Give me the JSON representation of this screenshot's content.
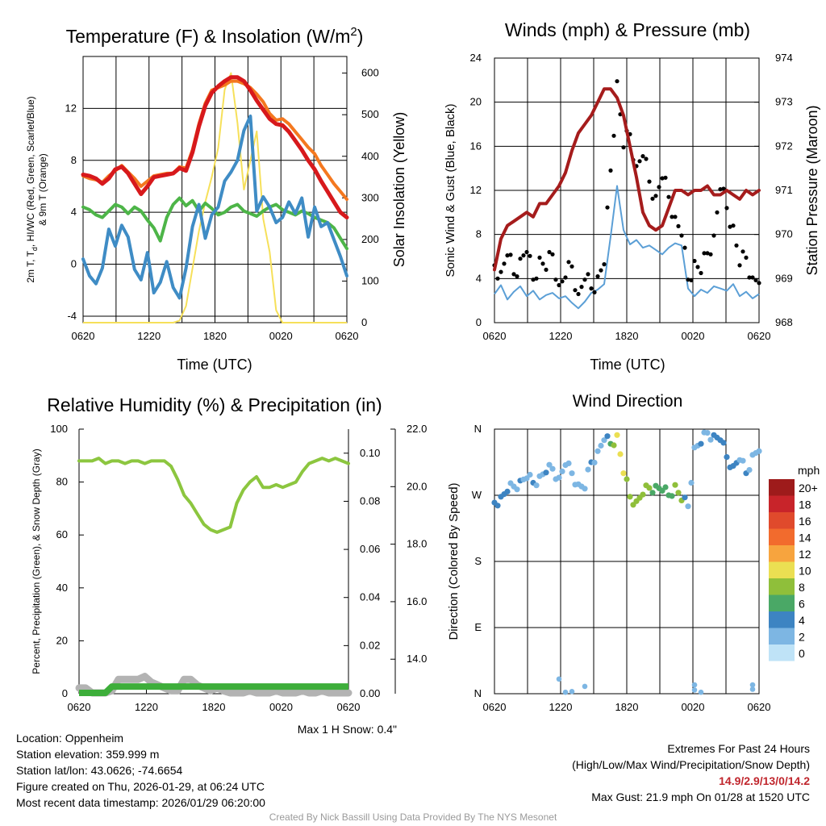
{
  "colors": {
    "red": "#d7191c",
    "scarlet": "#e03a2e",
    "orange": "#f4781f",
    "green": "#4db548",
    "blue": "#3f8cc5",
    "yellow": "#f6e05a",
    "maroon": "#a51c1c",
    "light_blue": "#5b9fd6",
    "gust": "#000000",
    "rh": "#8cc63f",
    "precip": "#3dae3a",
    "snow": "#b3b3b3"
  },
  "chart_data": [
    {
      "id": "temperature",
      "type": "line",
      "title": "Temperature (F) & Insolation (W/m",
      "title_sup": "2",
      "title_close": ")",
      "xlabel": "Time (UTC)",
      "ylabel_lines": [
        "2m T, T",
        "d",
        ", HI/WC (Red, Green, Scarlet/Blue)",
        "& 9m T (Orange)"
      ],
      "ylabel_right": "Solar Insolation (Yellow)",
      "x_ticks": [
        "0620",
        "1220",
        "1820",
        "0020",
        "0620"
      ],
      "ylim": [
        -4.5,
        16
      ],
      "y_ticks": [
        "-4",
        "0",
        "4",
        "8",
        "12"
      ],
      "ylim_right": [
        0,
        640
      ],
      "y_ticks_right": [
        "0",
        "100",
        "200",
        "300",
        "400",
        "500",
        "600"
      ],
      "series": [
        {
          "name": "9m T",
          "color": "orange",
          "width": 4,
          "values": [
            6.8,
            6.6,
            6.5,
            6.3,
            6.8,
            7.2,
            7.6,
            7.1,
            6.6,
            6.0,
            6.4,
            6.8,
            6.9,
            7.0,
            7.0,
            7.5,
            7.4,
            8.8,
            10.8,
            12.4,
            13.4,
            13.6,
            13.8,
            14.1,
            14.1,
            13.9,
            13.6,
            13.1,
            12.5,
            11.6,
            11.1,
            11.2,
            10.8,
            10.2,
            9.6,
            9.0,
            8.5,
            7.6,
            6.9,
            6.2,
            5.6,
            5.0
          ]
        },
        {
          "name": "2m T",
          "color": "red",
          "width": 5,
          "values": [
            6.9,
            6.8,
            6.6,
            6.2,
            6.6,
            7.3,
            7.5,
            7.0,
            6.2,
            5.4,
            6.0,
            6.7,
            6.8,
            6.9,
            7.0,
            7.4,
            7.2,
            8.6,
            10.6,
            12.2,
            13.2,
            13.7,
            14.1,
            14.4,
            14.4,
            14.1,
            13.4,
            12.6,
            11.9,
            11.2,
            10.8,
            10.7,
            10.2,
            9.5,
            8.8,
            8.0,
            7.3,
            6.4,
            5.6,
            4.8,
            4.0,
            3.6
          ]
        },
        {
          "name": "Td",
          "color": "green",
          "width": 4,
          "values": [
            4.4,
            4.2,
            3.8,
            3.6,
            4.1,
            4.6,
            4.4,
            3.9,
            4.4,
            4.1,
            3.4,
            2.8,
            1.8,
            3.6,
            4.6,
            5.1,
            4.5,
            4.9,
            4.1,
            4.7,
            4.3,
            3.8,
            4.0,
            4.4,
            4.6,
            4.1,
            3.9,
            3.7,
            4.1,
            4.4,
            4.6,
            4.2,
            4.0,
            3.8,
            4.1,
            3.9,
            3.6,
            3.4,
            3.2,
            2.8,
            2.0,
            1.2
          ]
        },
        {
          "name": "HI/WC",
          "color": "blue",
          "width": 4,
          "values": [
            0.4,
            -0.9,
            -1.5,
            -0.3,
            2.7,
            1.4,
            3.0,
            2.1,
            -0.4,
            -1.2,
            0.9,
            -2.2,
            -1.4,
            0.2,
            -1.8,
            -2.6,
            -0.3,
            2.9,
            4.6,
            2.0,
            3.8,
            4.4,
            6.4,
            7.1,
            8.0,
            10.3,
            11.4,
            4.1,
            5.2,
            4.4,
            3.2,
            3.6,
            4.8,
            3.9,
            5.1,
            2.1,
            4.4,
            2.9,
            3.2,
            1.9,
            0.6,
            -0.9
          ]
        }
      ],
      "right_series": [
        {
          "name": "Solar Insolation",
          "color": "yellow",
          "width": 2,
          "values": [
            0,
            0,
            0,
            0,
            0,
            0,
            0,
            0,
            0,
            0,
            0,
            0,
            0,
            0,
            0,
            5,
            40,
            130,
            220,
            290,
            350,
            420,
            560,
            600,
            480,
            320,
            390,
            460,
            250,
            170,
            30,
            0,
            0,
            0,
            0,
            0,
            0,
            0,
            0,
            0,
            0,
            0
          ]
        }
      ]
    },
    {
      "id": "winds",
      "type": "line",
      "title": "Winds (mph) & Pressure (mb)",
      "xlabel": "Time (UTC)",
      "ylabel": "Sonic Wind & Gust (Blue, Black)",
      "ylabel_right": "Station Pressure (Maroon)",
      "x_ticks": [
        "0620",
        "1220",
        "1820",
        "0020",
        "0620"
      ],
      "ylim": [
        0,
        24
      ],
      "y_ticks": [
        "0",
        "4",
        "8",
        "12",
        "16",
        "20",
        "24"
      ],
      "ylim_right": [
        968,
        974
      ],
      "y_ticks_right": [
        "968",
        "969",
        "970",
        "971",
        "972",
        "973",
        "974"
      ],
      "series": [
        {
          "name": "Sonic Wind",
          "color": "light_blue",
          "width": 2,
          "values": [
            2.6,
            3.4,
            2.1,
            2.8,
            3.3,
            2.4,
            2.9,
            2.1,
            2.5,
            2.7,
            2.2,
            2.4,
            1.8,
            1.3,
            1.9,
            2.7,
            3.0,
            3.5,
            7.8,
            12.4,
            8.4,
            7.1,
            7.5,
            6.8,
            7.0,
            6.6,
            6.2,
            6.8,
            7.2,
            7.0,
            3.1,
            2.4,
            3.0,
            2.7,
            3.3,
            3.1,
            2.9,
            3.5,
            2.4,
            2.8,
            2.2,
            2.6
          ]
        },
        {
          "name": "Gust",
          "color": "gust",
          "width": 0,
          "marker": "dot",
          "values": [
            5.2,
            4.6,
            6.1,
            4.4,
            5.8,
            6.4,
            3.9,
            5.9,
            4.8,
            6.2,
            3.4,
            4.1,
            5.1,
            2.6,
            3.9,
            3.1,
            4.2,
            5.3,
            13.8,
            21.9,
            15.9,
            17.1,
            14.2,
            15.1,
            12.8,
            11.5,
            13.1,
            11.4,
            9.6,
            7.9,
            3.9,
            5.6,
            4.5,
            6.3,
            7.9,
            12.1,
            10.4,
            8.8,
            5.2,
            5.9,
            4.1,
            3.6
          ]
        }
      ],
      "right_series": [
        {
          "name": "Station Pressure",
          "color": "maroon",
          "width": 4,
          "values": [
            969.2,
            969.9,
            970.2,
            970.3,
            970.4,
            970.5,
            970.4,
            970.7,
            970.7,
            970.9,
            971.1,
            971.4,
            971.9,
            972.3,
            972.5,
            972.7,
            973.0,
            973.3,
            973.3,
            973.1,
            972.7,
            972.0,
            971.3,
            970.5,
            970.2,
            970.1,
            970.2,
            970.6,
            971.0,
            971.0,
            970.9,
            971.0,
            971.0,
            971.1,
            970.9,
            970.9,
            971.0,
            970.9,
            970.8,
            971.0,
            970.9,
            971.0
          ]
        }
      ]
    },
    {
      "id": "humidity",
      "type": "line",
      "title": "Relative Humidity (%) & Precipitation (in)",
      "ylabel": "Percent, Precipitation (Green), & Snow Depth (Gray)",
      "x_ticks": [
        "0620",
        "1220",
        "1820",
        "0020",
        "0620"
      ],
      "ylim": [
        0,
        100
      ],
      "y_ticks": [
        "0",
        "20",
        "40",
        "60",
        "80",
        "100"
      ],
      "ylim_right": [
        0,
        0.11
      ],
      "y_ticks_right": [
        "0.00",
        "0.02",
        "0.04",
        "0.06",
        "0.08",
        "0.10"
      ],
      "ylim_snow": [
        12.8,
        22
      ],
      "y_ticks_snow": [
        "14.0",
        "16.0",
        "18.0",
        "20.0",
        "22.0"
      ],
      "footnote": "Max 1 H Snow: 0.4\"",
      "series": [
        {
          "name": "Relative Humidity",
          "color": "rh",
          "width": 4,
          "values": [
            88,
            88,
            88,
            89,
            87,
            88,
            88,
            87,
            88,
            88,
            87,
            88,
            88,
            88,
            86,
            81,
            75,
            72,
            68,
            64,
            62,
            61,
            62,
            63,
            72,
            77,
            80,
            82,
            78,
            78,
            79,
            78,
            79,
            80,
            84,
            87,
            88,
            89,
            88,
            89,
            88,
            87
          ]
        },
        {
          "name": "Precipitation",
          "color": "precip",
          "width": 8,
          "values": [
            0,
            0,
            0,
            0,
            0,
            0.003,
            0.003,
            0.003,
            0.003,
            0.003,
            0.003,
            0.003,
            0.003,
            0.003,
            0.003,
            0.003,
            0.003,
            0.003,
            0.003,
            0.003,
            0.003,
            0.003,
            0.003,
            0.003,
            0.003,
            0.003,
            0.003,
            0.003,
            0.003,
            0.003,
            0.003,
            0.003,
            0.003,
            0.003,
            0.003,
            0.003,
            0.003,
            0.003,
            0.003,
            0.003,
            0.003,
            0.003
          ]
        },
        {
          "name": "Snow Depth",
          "color": "snow",
          "width": 9,
          "values": [
            13.0,
            13.0,
            12.8,
            12.8,
            12.8,
            12.9,
            13.3,
            13.3,
            13.3,
            13.3,
            13.4,
            13.2,
            13.1,
            13.0,
            12.9,
            12.9,
            13.3,
            13.3,
            13.1,
            13.0,
            12.9,
            13.0,
            12.9,
            12.8,
            12.8,
            12.8,
            12.9,
            12.8,
            12.8,
            12.8,
            12.9,
            12.8,
            12.8,
            12.8,
            12.9,
            12.8,
            12.8,
            12.9,
            12.8,
            12.8,
            12.8,
            12.8
          ]
        }
      ]
    },
    {
      "id": "direction",
      "type": "scatter",
      "title": "Wind Direction",
      "ylabel": "Direction (Colored By Speed)",
      "x_ticks": [
        "0620",
        "1220",
        "1820",
        "0020",
        "0620"
      ],
      "y_ticks": [
        "N",
        "E",
        "S",
        "W",
        "N"
      ],
      "ylim": [
        0,
        360
      ],
      "colorbar_title": "mph",
      "colorbar_labels": [
        "20+",
        "18",
        "16",
        "14",
        "12",
        "10",
        "8",
        "6",
        "4",
        "2",
        "0"
      ],
      "colorbar_colors": [
        "#9e1b1b",
        "#c8242a",
        "#e04a2c",
        "#f26b2d",
        "#f7a43e",
        "#ebdf52",
        "#8fbf3a",
        "#4aa866",
        "#3d84c2",
        "#7db6e3",
        "#bfe3f7"
      ],
      "directions": [
        260,
        268,
        275,
        282,
        290,
        293,
        287,
        296,
        301,
        306,
        294,
        311,
        300,
        285,
        279,
        315,
        330,
        345,
        340,
        352,
        300,
        268,
        262,
        271,
        280,
        283,
        276,
        270,
        284,
        263,
        255,
        335,
        340,
        355,
        352,
        345,
        322,
        310,
        318,
        300,
        325,
        330
      ],
      "speeds": [
        3,
        3,
        3,
        2,
        3,
        2,
        3,
        2,
        3,
        2,
        2,
        2,
        2,
        2,
        1,
        3,
        2,
        1,
        6,
        10,
        9,
        8,
        7,
        7,
        7,
        6,
        6,
        6,
        7,
        7,
        2,
        2,
        3,
        2,
        3,
        4,
        3,
        4,
        2,
        3,
        2,
        2
      ],
      "north_points": [
        {
          "i": 10,
          "d": 20
        },
        {
          "i": 11,
          "d": 2
        },
        {
          "i": 12,
          "d": 3
        },
        {
          "i": 14,
          "d": 10
        },
        {
          "i": 31,
          "d": 5
        },
        {
          "i": 31,
          "d": 12
        },
        {
          "i": 32,
          "d": 2
        },
        {
          "i": 40,
          "d": 12
        },
        {
          "i": 40,
          "d": 6
        }
      ]
    }
  ],
  "info": {
    "location": "Location: Oppenheim",
    "elevation": "Station elevation: 359.999 m",
    "latlon": "Station lat/lon: 43.0626; -74.6654",
    "created": "Figure created on Thu, 2026-01-29, at 06:24 UTC",
    "recent": "Most recent data timestamp: 2026/01/29 06:20:00"
  },
  "extremes": {
    "title": "Extremes For Past 24 Hours",
    "subtitle": "(High/Low/Max Wind/Precipitation/Snow Depth)",
    "values": "14.9/2.9/13/0/14.2",
    "max_gust": "Max Gust: 21.9 mph On 01/28 at 1520 UTC"
  },
  "credit": "Created By Nick Bassill Using Data Provided By The NYS Mesonet"
}
